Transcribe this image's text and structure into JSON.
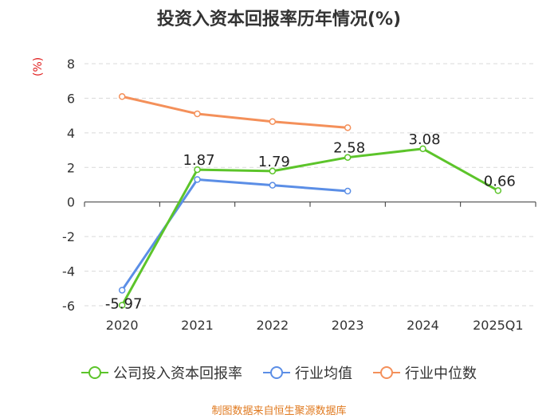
{
  "chart_data": {
    "type": "line",
    "title": "投资入资本回报率历年情况(%)",
    "ylabel": "(%)",
    "categories": [
      "2020",
      "2021",
      "2022",
      "2023",
      "2024",
      "2025Q1"
    ],
    "ylim": [
      -6,
      8
    ],
    "yticks": [
      8,
      6,
      4,
      2,
      0,
      -2,
      -4,
      -6
    ],
    "series": [
      {
        "name": "公司投入资本回报率",
        "color": "#5cc42a",
        "values": [
          -5.97,
          1.87,
          1.79,
          2.58,
          3.08,
          0.66
        ],
        "labels": [
          "-5.97",
          "1.87",
          "1.79",
          "2.58",
          "3.08",
          "0.66"
        ]
      },
      {
        "name": "行业均值",
        "color": "#5b8ee6",
        "values": [
          -5.1,
          1.3,
          0.97,
          0.63,
          null,
          null
        ]
      },
      {
        "name": "行业中位数",
        "color": "#f4905a",
        "values": [
          6.1,
          5.1,
          4.65,
          4.3,
          null,
          null
        ]
      }
    ],
    "source": "制图数据来自恒生聚源数据库"
  }
}
